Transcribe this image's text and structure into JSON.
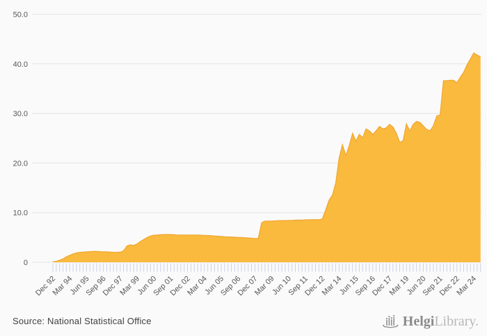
{
  "page": {
    "background": "#fafafa"
  },
  "chart_data": {
    "type": "area",
    "title": "",
    "frequency": "quarterly",
    "start_period": "Dec 92",
    "end_period": "Sep 24",
    "x_tick_labels": [
      "Dec 92",
      "Mar 94",
      "Jun 95",
      "Sep 96",
      "Dec 97",
      "Mar 99",
      "Jun 00",
      "Sep 01",
      "Dec 02",
      "Mar 04",
      "Jun 05",
      "Sep 06",
      "Dec 07",
      "Mar 09",
      "Jun 10",
      "Sep 11",
      "Dec 12",
      "Mar 14",
      "Jun 15",
      "Sep 16",
      "Dec 17",
      "Mar 19",
      "Jun 20",
      "Sep 21",
      "Dec 22",
      "Mar 24"
    ],
    "label_every_n_points": 5,
    "y_tick_labels": [
      "0",
      "10.0",
      "20.0",
      "30.0",
      "40.0",
      "50.0"
    ],
    "y_tick_values": [
      0,
      10,
      20,
      30,
      40,
      50
    ],
    "ylim": [
      0,
      50
    ],
    "grid": "horizontal",
    "legend": "none",
    "series": [
      {
        "name": "value",
        "fill_color": "#f9ba3d",
        "edge_color": "#f1a62f",
        "values": [
          0.1,
          0.2,
          0.4,
          0.7,
          1.1,
          1.4,
          1.7,
          1.9,
          2.0,
          2.05,
          2.1,
          2.15,
          2.2,
          2.2,
          2.15,
          2.1,
          2.1,
          2.05,
          2.0,
          2.0,
          2.05,
          2.3,
          3.3,
          3.5,
          3.4,
          3.7,
          4.2,
          4.6,
          5.0,
          5.3,
          5.45,
          5.5,
          5.55,
          5.6,
          5.6,
          5.6,
          5.55,
          5.5,
          5.5,
          5.5,
          5.5,
          5.5,
          5.5,
          5.5,
          5.45,
          5.4,
          5.4,
          5.35,
          5.3,
          5.25,
          5.2,
          5.15,
          5.1,
          5.1,
          5.05,
          5.0,
          5.0,
          4.95,
          4.9,
          4.85,
          4.8,
          4.8,
          8.0,
          8.3,
          8.3,
          8.3,
          8.35,
          8.4,
          8.4,
          8.4,
          8.45,
          8.45,
          8.5,
          8.5,
          8.5,
          8.55,
          8.55,
          8.6,
          8.6,
          8.6,
          8.7,
          10.5,
          12.5,
          13.5,
          16.0,
          21.0,
          23.7,
          21.5,
          23.5,
          26.0,
          24.4,
          25.8,
          25.1,
          26.9,
          26.5,
          25.8,
          26.5,
          27.4,
          26.9,
          27.1,
          27.8,
          27.3,
          26.0,
          24.2,
          24.5,
          27.9,
          26.5,
          27.8,
          28.4,
          28.2,
          27.5,
          26.8,
          26.5,
          27.5,
          29.5,
          29.7,
          36.6,
          36.6,
          36.7,
          36.7,
          36.2,
          37.3,
          38.3,
          39.8,
          41.0,
          42.2,
          41.8,
          41.4
        ]
      }
    ],
    "colors": {
      "background": "#fafafa",
      "gridline": "#e4e4e4",
      "x_tick_mark": "#c9d1e6",
      "axis_text": "#55565a"
    }
  },
  "footer": {
    "source_text": "Source: National Statistical Office",
    "logo": {
      "brand_bold": "Helgi",
      "brand_light": "Library.",
      "icon": "helgi-ship-icon",
      "icon_color": "#8f8f8f"
    }
  }
}
